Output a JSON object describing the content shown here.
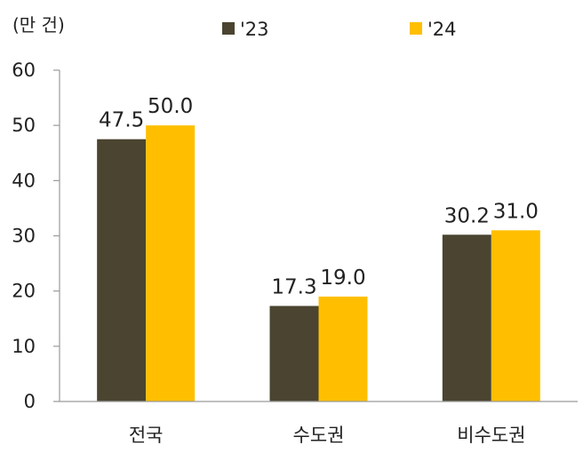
{
  "chart_data": {
    "type": "bar",
    "unit_label": "(만 건)",
    "categories": [
      "전국",
      "수도권",
      "비수도권"
    ],
    "series": [
      {
        "name": "'23",
        "color": "#4a4430",
        "values": [
          47.5,
          17.3,
          30.2
        ],
        "labels": [
          "47.5",
          "17.3",
          "30.2"
        ]
      },
      {
        "name": "'24",
        "color": "#ffbf00",
        "values": [
          50.0,
          19.0,
          31.0
        ],
        "labels": [
          "50.0",
          "19.0",
          "31.0"
        ]
      }
    ],
    "yticks": [
      "0",
      "10",
      "20",
      "30",
      "40",
      "50",
      "60"
    ],
    "ylim": [
      0,
      60
    ],
    "legend_position": "top",
    "grid": false
  }
}
